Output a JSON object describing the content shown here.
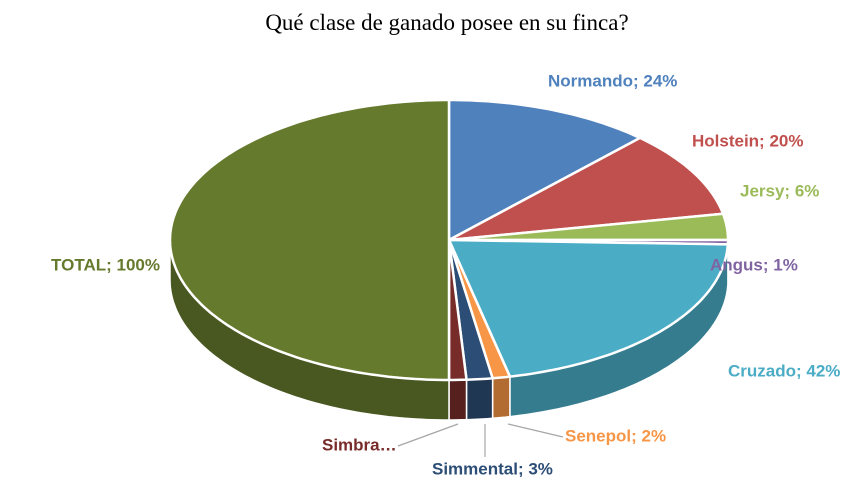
{
  "chart_data": {
    "type": "pie",
    "title": "Qué clase de ganado posee en su finca?",
    "values": [
      24,
      20,
      6,
      1,
      42,
      2,
      3,
      2,
      100
    ],
    "value_labels": [
      "Normando; 24%",
      "Holstein; 20%",
      "Jersy; 6%",
      "Angus; 1%",
      "Cruzado; 42%",
      "Senepol; 2%",
      "Simmental; 3%",
      "Simbra…",
      "TOTAL; 100%"
    ],
    "colors": [
      "#4f81bd",
      "#c0504d",
      "#9bbb59",
      "#8064a2",
      "#4bacc6",
      "#f79646",
      "#2c4d75",
      "#772c2a",
      "#667a2e"
    ]
  }
}
